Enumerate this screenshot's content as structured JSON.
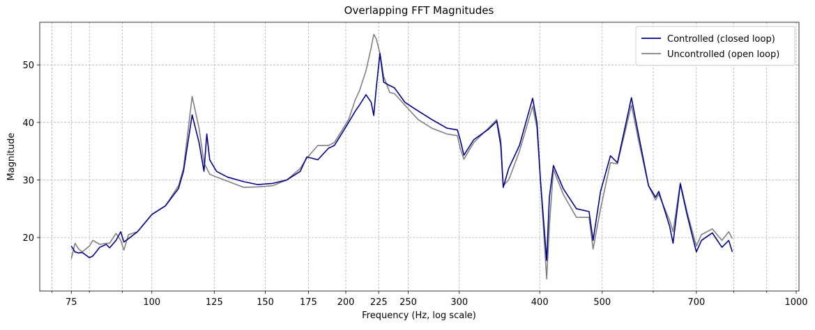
{
  "chart_data": {
    "type": "line",
    "title": "Overlapping FFT Magnitudes",
    "x_label": "Frequency (Hz, log scale)",
    "y_label": "Magnitude",
    "xscale": "log",
    "grid": true,
    "legend": "upper right",
    "xlim": [
      67,
      1010
    ],
    "ylim": [
      10.7,
      57.4
    ],
    "xticks": [
      75,
      100,
      125,
      150,
      175,
      200,
      225,
      250,
      300,
      400,
      500,
      700,
      1000
    ],
    "xminorticks": [
      70,
      80,
      90,
      600,
      800,
      900
    ],
    "yticks": [
      20,
      30,
      40,
      50
    ],
    "x": [
      75,
      76,
      77,
      78,
      80,
      81,
      83,
      85,
      86,
      88,
      89.5,
      90.5,
      92,
      95,
      100,
      105,
      110,
      112,
      115.5,
      118.4,
      120.5,
      121.7,
      123,
      126,
      131,
      139,
      146,
      154,
      162,
      170,
      174,
      181,
      188,
      192,
      197,
      202,
      207,
      210,
      215,
      219,
      221,
      223,
      226,
      229,
      234,
      238,
      247,
      259,
      272,
      287,
      298,
      301,
      305,
      316,
      333,
      343,
      348,
      351,
      358,
      372,
      390,
      396,
      401,
      410,
      414,
      420,
      435,
      456,
      477,
      484,
      497,
      515,
      528,
      555,
      569,
      590,
      605,
      612,
      636,
      644,
      661,
      677,
      700,
      713,
      741,
      767,
      786,
      796
    ],
    "series": [
      {
        "name": "Controlled (closed loop)",
        "color": "#00008b",
        "values": [
          18.5,
          17.5,
          17.3,
          17.4,
          16.5,
          16.8,
          18.3,
          18.8,
          18.2,
          19.5,
          21,
          19.2,
          19.8,
          21,
          24,
          25.5,
          28.5,
          31.5,
          41.3,
          36.5,
          31.5,
          38,
          33.5,
          31.5,
          30.5,
          29.7,
          29.2,
          29.4,
          30,
          31.5,
          34,
          33.5,
          35.5,
          36,
          38,
          40,
          42,
          43,
          44.8,
          43.5,
          41.2,
          46,
          52,
          47,
          46.4,
          46,
          43.5,
          42,
          40.5,
          39,
          38.7,
          37,
          34.3,
          37,
          38.8,
          40.2,
          36,
          28.7,
          32,
          36,
          44.2,
          40,
          30,
          16,
          27,
          32.5,
          28.5,
          25,
          24.5,
          19.5,
          28,
          34.2,
          33,
          44.3,
          38,
          29,
          27,
          28,
          22,
          19,
          29.3,
          24,
          17.5,
          19.5,
          20.8,
          18.3,
          19.5,
          17.5
        ]
      },
      {
        "name": "Uncontrolled (open loop)",
        "color": "#808080",
        "values": [
          16.3,
          19,
          18,
          17.5,
          18.5,
          19.5,
          18.8,
          19,
          19,
          20.7,
          19.5,
          17.8,
          20.5,
          21,
          24,
          25.5,
          29,
          32,
          44.5,
          39,
          33,
          32,
          31,
          30.5,
          29.8,
          28.7,
          28.8,
          29,
          30,
          32,
          33.8,
          36,
          36,
          36.5,
          38.5,
          40.5,
          44,
          45.5,
          49,
          53,
          55.3,
          54.5,
          52,
          48,
          45.2,
          45,
          43,
          40.5,
          39,
          38,
          37.7,
          35.5,
          33.6,
          36.5,
          39,
          40.5,
          37,
          29,
          30,
          35,
          42.8,
          39,
          30,
          12.8,
          22,
          31.8,
          27.5,
          23.5,
          23.5,
          18,
          25,
          33,
          32.8,
          43,
          37,
          29,
          26.5,
          27.5,
          23,
          21,
          29.5,
          24.5,
          18.5,
          20.5,
          21.5,
          19.5,
          21,
          19.8
        ]
      }
    ]
  }
}
